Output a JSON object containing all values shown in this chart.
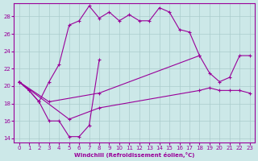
{
  "xlabel": "Windchill (Refroidissement éolien,°C)",
  "background_color": "#cce8e8",
  "grid_color": "#aacccc",
  "line_color": "#990099",
  "ylim": [
    13.5,
    29.5
  ],
  "xlim": [
    -0.5,
    23.5
  ],
  "yticks": [
    14,
    16,
    18,
    20,
    22,
    24,
    26,
    28
  ],
  "xticks": [
    0,
    1,
    2,
    3,
    4,
    5,
    6,
    7,
    8,
    9,
    10,
    11,
    12,
    13,
    14,
    15,
    16,
    17,
    18,
    19,
    20,
    21,
    22,
    23
  ],
  "series_a_x": [
    0,
    1,
    2,
    3,
    4,
    5,
    6,
    7,
    8,
    9,
    10,
    11,
    12,
    13,
    14,
    15,
    16,
    17,
    18
  ],
  "series_a_y": [
    20.5,
    19.5,
    18.2,
    20.5,
    22.5,
    27.0,
    27.5,
    29.2,
    27.8,
    28.5,
    27.5,
    28.2,
    27.5,
    27.5,
    29.0,
    28.5,
    26.5,
    26.2,
    23.5
  ],
  "series_b_x": [
    0,
    1,
    2,
    3,
    4,
    5,
    6,
    7,
    8
  ],
  "series_b_y": [
    20.5,
    19.5,
    18.2,
    16.0,
    16.0,
    14.2,
    14.2,
    15.5,
    23.0
  ],
  "series_c_x": [
    0,
    3,
    8,
    18,
    19,
    20,
    21,
    22,
    23
  ],
  "series_c_y": [
    20.5,
    18.2,
    19.2,
    23.5,
    21.5,
    20.5,
    21.0,
    23.5,
    23.5
  ],
  "series_d_x": [
    0,
    5,
    8,
    18,
    19,
    20,
    21,
    22,
    23
  ],
  "series_d_y": [
    20.5,
    16.2,
    17.5,
    19.5,
    19.8,
    19.5,
    19.5,
    19.5,
    19.2
  ]
}
